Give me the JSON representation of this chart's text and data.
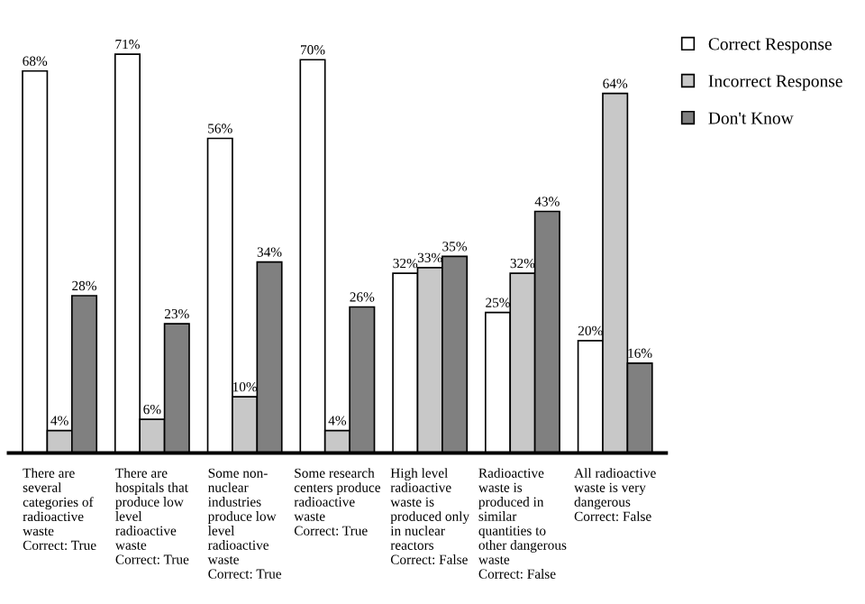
{
  "chart_data": {
    "type": "bar",
    "categories": [
      "There are\nseveral\ncategories of\nradioactive\nwaste\nCorrect: True",
      "There are\nhospitals that\nproduce low\nlevel\nradioactive\nwaste\nCorrect: True",
      "Some non-\nnuclear\nindustries\nproduce low\nlevel\nradioactive\nwaste\nCorrect: True",
      "Some research\ncenters produce\nradioactive\nwaste\nCorrect: True",
      "High level\nradioactive\nwaste is\nproduced only\nin nuclear\nreactors\nCorrect: False",
      "Radioactive\nwaste is\nproduced in\nsimilar\nquantities to\nother dangerous\nwaste\nCorrect: False",
      "All radioactive\nwaste is very\ndangerous\nCorrect: False"
    ],
    "series": [
      {
        "name": "Correct Response",
        "color": "#ffffff",
        "values": [
          68,
          71,
          56,
          70,
          32,
          25,
          20
        ],
        "value_labels": [
          "68%",
          "71%",
          "56%",
          "70%",
          "32%",
          "25%",
          "20%"
        ]
      },
      {
        "name": "Incorrect Response",
        "color": "#c8c8c8",
        "values": [
          4,
          6,
          10,
          4,
          33,
          32,
          64
        ],
        "value_labels": [
          "4%",
          "6%",
          "10%",
          "4%",
          "33%",
          "32%",
          "64%"
        ]
      },
      {
        "name": "Don't Know",
        "color": "#808080",
        "values": [
          28,
          23,
          34,
          26,
          35,
          43,
          16
        ],
        "value_labels": [
          "28%",
          "23%",
          "34%",
          "26%",
          "35%",
          "43%",
          "16%"
        ]
      }
    ],
    "legend": "top right",
    "grid": false
  }
}
